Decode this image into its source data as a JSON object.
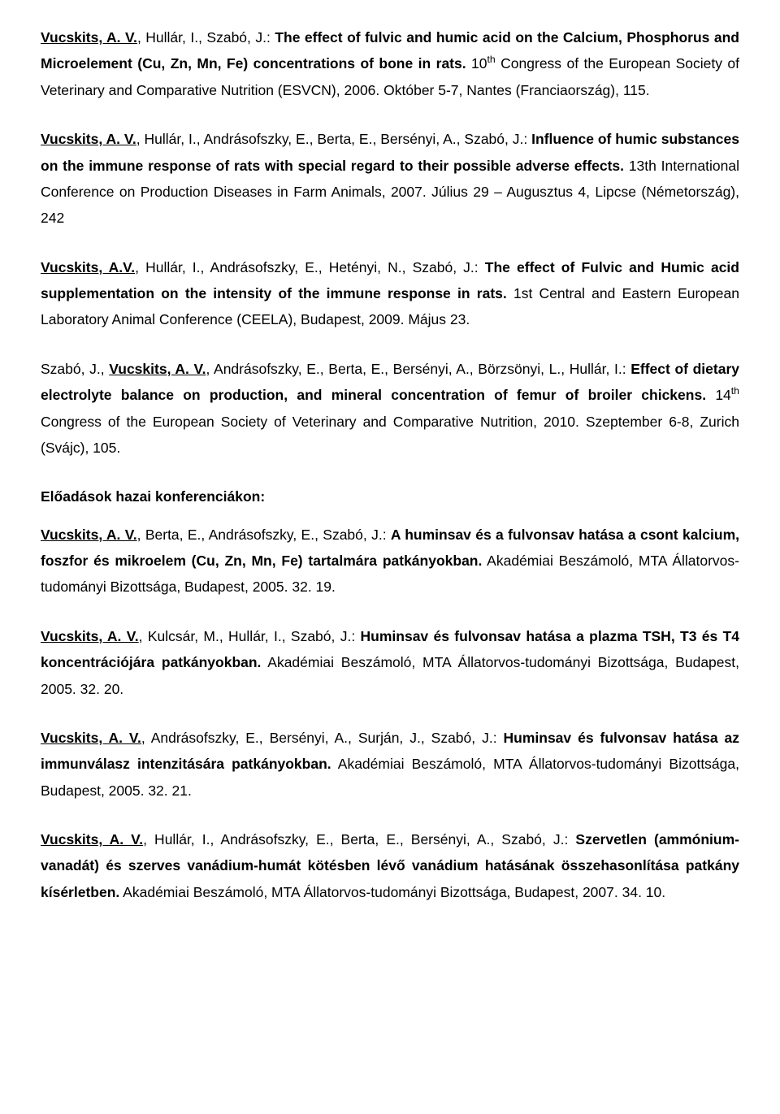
{
  "entries": [
    {
      "parts": [
        {
          "text": "Vucskits, A. V.",
          "style": "underline-bold"
        },
        {
          "text": ", Hullár, I., Szabó, J.: ",
          "style": "normal"
        },
        {
          "text": "The effect of fulvic and humic acid on the Calcium, Phosphorus and Microelement (Cu, Zn, Mn, Fe) concentrations of bone in rats.",
          "style": "bold"
        },
        {
          "text": " 10",
          "style": "normal"
        },
        {
          "text": "th",
          "style": "sup"
        },
        {
          "text": " Congress of the European Society of Veterinary and Comparative Nutrition (ESVCN), 2006. Október 5-7, Nantes (Franciaország), 115.",
          "style": "normal"
        }
      ]
    },
    {
      "parts": [
        {
          "text": "Vucskits, A. V.",
          "style": "underline-bold"
        },
        {
          "text": ", Hullár, I., Andrásofszky, E., Berta, E., Bersényi, A., Szabó, J.: ",
          "style": "normal"
        },
        {
          "text": "Influence of humic substances on the immune response of rats with special regard to their possible adverse effects.",
          "style": "bold"
        },
        {
          "text": " 13th International Conference on Production Diseases in Farm Animals, 2007. Július 29 – Augusztus 4, Lipcse (Németország), 242",
          "style": "normal"
        }
      ]
    },
    {
      "parts": [
        {
          "text": "Vucskits, A.V.",
          "style": "underline-bold"
        },
        {
          "text": ", Hullár, I., Andrásofszky, E., Hetényi, N., Szabó, J.: ",
          "style": "normal"
        },
        {
          "text": "The effect of Fulvic and Humic acid supplementation on the intensity of the immune response in rats.",
          "style": "bold"
        },
        {
          "text": " 1st Central and Eastern European Laboratory Animal Conference (CEELA), Budapest, 2009. Május 23.",
          "style": "normal"
        }
      ]
    },
    {
      "parts": [
        {
          "text": "Szabó, J., ",
          "style": "normal"
        },
        {
          "text": "Vucskits, A. V.",
          "style": "underline-bold"
        },
        {
          "text": ", Andrásofszky, E., Berta, E., Bersényi, A., Börzsönyi, L., Hullár, I.: ",
          "style": "normal"
        },
        {
          "text": "Effect of dietary electrolyte balance on production, and mineral concentration of femur of broiler chickens.",
          "style": "bold"
        },
        {
          "text": " 14",
          "style": "normal"
        },
        {
          "text": "th",
          "style": "sup"
        },
        {
          "text": " Congress of the European Society of Veterinary and Comparative Nutrition, 2010. Szeptember 6-8, Zurich (Svájc), 105.",
          "style": "normal"
        }
      ]
    }
  ],
  "heading": "Előadások hazai konferenciákon:",
  "entries2": [
    {
      "parts": [
        {
          "text": "Vucskits, A. V.",
          "style": "underline-bold"
        },
        {
          "text": ", Berta, E., Andrásofszky, E., Szabó, J.: ",
          "style": "normal"
        },
        {
          "text": "A huminsav és a fulvonsav hatása a csont kalcium, foszfor és mikroelem (Cu, Zn, Mn, Fe) tartalmára patkányokban.",
          "style": "bold"
        },
        {
          "text": " Akadémiai Beszámoló, MTA Állatorvos-tudományi Bizottsága, Budapest, 2005. 32. 19.",
          "style": "normal"
        }
      ]
    },
    {
      "parts": [
        {
          "text": "Vucskits, A. V.",
          "style": "underline-bold"
        },
        {
          "text": ", Kulcsár, M., Hullár, I., Szabó, J.: ",
          "style": "normal"
        },
        {
          "text": "Huminsav és fulvonsav hatása a plazma TSH, T3 és T4 koncentrációjára patkányokban.",
          "style": "bold"
        },
        {
          "text": " Akadémiai Beszámoló, MTA Állatorvos-tudományi Bizottsága, Budapest, 2005. 32. 20.",
          "style": "normal"
        }
      ]
    },
    {
      "parts": [
        {
          "text": "Vucskits, A. V.",
          "style": "underline-bold"
        },
        {
          "text": ", Andrásofszky, E., Bersényi, A., Surján, J., Szabó, J.: ",
          "style": "normal"
        },
        {
          "text": "Huminsav és fulvonsav hatása az immunválasz intenzitására patkányokban.",
          "style": "bold"
        },
        {
          "text": " Akadémiai Beszámoló, MTA Állatorvos-tudományi Bizottsága, Budapest, 2005. 32. 21.",
          "style": "normal"
        }
      ]
    },
    {
      "parts": [
        {
          "text": "Vucskits, A. V.",
          "style": "underline-bold"
        },
        {
          "text": ", Hullár, I., Andrásofszky, E., Berta, E., Bersényi, A., Szabó, J.: ",
          "style": "normal"
        },
        {
          "text": "Szervetlen (ammónium-vanadát) és szerves vanádium-humát kötésben lévő vanádium hatásának összehasonlítása patkány kísérletben.",
          "style": "bold"
        },
        {
          "text": " Akadémiai Beszámoló, MTA Állatorvos-tudományi Bizottsága, Budapest, 2007. 34. 10.",
          "style": "normal"
        }
      ]
    }
  ]
}
